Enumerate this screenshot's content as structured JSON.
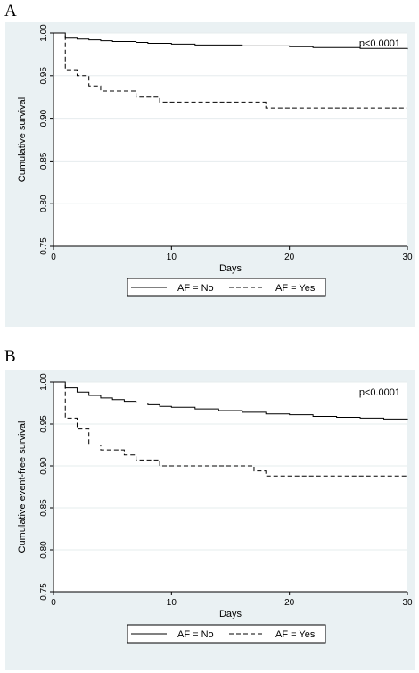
{
  "chart_data": [
    {
      "panel_label": "A",
      "type": "line",
      "step": true,
      "xlabel": "Days",
      "ylabel": "Cumulative survival",
      "xlim": [
        0,
        30
      ],
      "ylim": [
        0.75,
        1.0
      ],
      "x_ticks": [
        "0",
        "10",
        "20",
        "30"
      ],
      "y_ticks": [
        "0.75",
        "0.80",
        "0.85",
        "0.90",
        "0.95",
        "1.00"
      ],
      "annotation": "p<0.0001",
      "legend_position": "bottom",
      "grid": true,
      "series": [
        {
          "name": "AF = No",
          "style": "solid",
          "x": [
            0,
            1,
            2,
            3,
            4,
            5,
            6,
            7,
            8,
            9,
            10,
            12,
            14,
            16,
            18,
            20,
            22,
            24,
            26,
            28,
            30
          ],
          "y": [
            1.0,
            0.994,
            0.993,
            0.992,
            0.991,
            0.99,
            0.99,
            0.989,
            0.988,
            0.988,
            0.987,
            0.986,
            0.986,
            0.985,
            0.985,
            0.984,
            0.983,
            0.983,
            0.982,
            0.982,
            0.981
          ]
        },
        {
          "name": "AF = Yes",
          "style": "dashed",
          "x": [
            0,
            1,
            2,
            3,
            4,
            7,
            9,
            18,
            30
          ],
          "y": [
            1.0,
            0.957,
            0.95,
            0.938,
            0.932,
            0.925,
            0.919,
            0.912,
            0.912
          ]
        }
      ]
    },
    {
      "panel_label": "B",
      "type": "line",
      "step": true,
      "xlabel": "Days",
      "ylabel": "Cumulative event-free survival",
      "xlim": [
        0,
        30
      ],
      "ylim": [
        0.75,
        1.0
      ],
      "x_ticks": [
        "0",
        "10",
        "20",
        "30"
      ],
      "y_ticks": [
        "0.75",
        "0.80",
        "0.85",
        "0.90",
        "0.95",
        "1.00"
      ],
      "annotation": "p<0.0001",
      "legend_position": "bottom",
      "grid": true,
      "series": [
        {
          "name": "AF = No",
          "style": "solid",
          "x": [
            0,
            1,
            2,
            3,
            4,
            5,
            6,
            7,
            8,
            9,
            10,
            12,
            14,
            16,
            18,
            20,
            22,
            24,
            26,
            28,
            30
          ],
          "y": [
            1.0,
            0.993,
            0.988,
            0.984,
            0.981,
            0.979,
            0.977,
            0.975,
            0.973,
            0.971,
            0.97,
            0.968,
            0.966,
            0.964,
            0.962,
            0.961,
            0.959,
            0.958,
            0.957,
            0.956,
            0.955
          ]
        },
        {
          "name": "AF = Yes",
          "style": "dashed",
          "x": [
            0,
            1,
            2,
            3,
            4,
            6,
            7,
            9,
            17,
            18,
            30
          ],
          "y": [
            1.0,
            0.957,
            0.944,
            0.925,
            0.919,
            0.913,
            0.907,
            0.9,
            0.894,
            0.888,
            0.888
          ]
        }
      ]
    }
  ]
}
